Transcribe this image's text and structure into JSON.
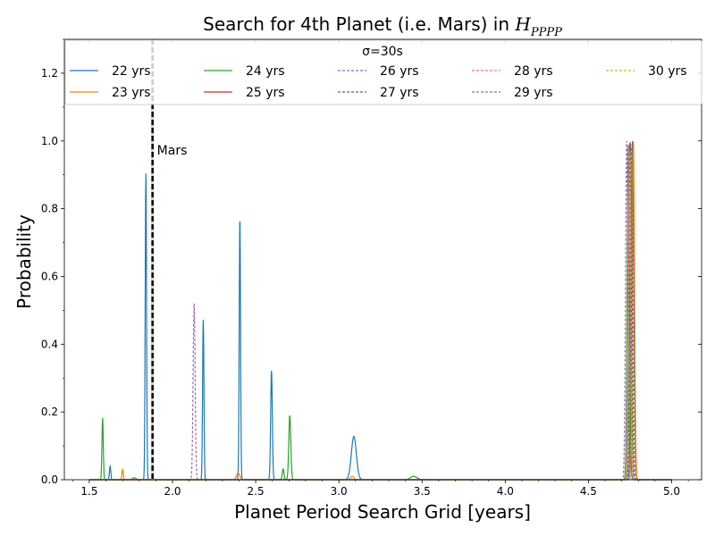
{
  "chart_data": {
    "type": "line",
    "title_main": "Search for 4th Planet (i.e. Mars) in ",
    "title_symbol": "H",
    "title_subscript": "PPPP",
    "xlabel": "Planet Period Search Grid [years]",
    "ylabel": "Probability",
    "xlim": [
      1.35,
      5.18
    ],
    "ylim": [
      0.0,
      1.3
    ],
    "x_ticks": [
      1.5,
      2.0,
      2.5,
      3.0,
      3.5,
      4.0,
      4.5,
      5.0
    ],
    "x_tick_labels": [
      "1.5",
      "2.0",
      "2.5",
      "3.0",
      "3.5",
      "4.0",
      "4.5",
      "5.0"
    ],
    "y_ticks": [
      0.0,
      0.2,
      0.4,
      0.6,
      0.8,
      1.0,
      1.2
    ],
    "y_tick_labels": [
      "0.0",
      "0.2",
      "0.4",
      "0.6",
      "0.8",
      "1.0",
      "1.2"
    ],
    "legend": {
      "title": "σ=30s",
      "placement": "top",
      "columns": 5
    },
    "reference_line": {
      "x": 1.88,
      "label": "Mars",
      "color": "#000000",
      "style": "dashed"
    },
    "x_range": [
      1.5,
      5.0
    ],
    "series": [
      {
        "name": "22 yrs",
        "color": "#1f77b4",
        "dash": "solid",
        "peaks": [
          [
            1.625,
            0.04,
            0.004
          ],
          [
            1.84,
            0.905,
            0.004
          ],
          [
            2.185,
            0.475,
            0.004
          ],
          [
            2.405,
            0.772,
            0.004
          ],
          [
            2.595,
            0.322,
            0.005
          ],
          [
            3.09,
            0.128,
            0.015
          ],
          [
            4.765,
            1.0,
            0.008
          ]
        ]
      },
      {
        "name": "23 yrs",
        "color": "#ff7f0e",
        "dash": "solid",
        "peaks": [
          [
            1.7,
            0.03,
            0.004
          ],
          [
            2.395,
            0.02,
            0.01
          ],
          [
            3.08,
            0.01,
            0.01
          ],
          [
            4.77,
            1.0,
            0.007
          ]
        ]
      },
      {
        "name": "24 yrs",
        "color": "#2ca02c",
        "dash": "solid",
        "peaks": [
          [
            1.58,
            0.182,
            0.004
          ],
          [
            1.77,
            0.006,
            0.01
          ],
          [
            2.665,
            0.032,
            0.005
          ],
          [
            2.705,
            0.19,
            0.006
          ],
          [
            3.45,
            0.01,
            0.02
          ],
          [
            4.74,
            0.99,
            0.007
          ]
        ]
      },
      {
        "name": "25 yrs",
        "color": "#d62728",
        "dash": "solid",
        "peaks": [
          [
            4.75,
            1.0,
            0.007
          ]
        ]
      },
      {
        "name": "26 yrs",
        "color": "#9467bd",
        "dash": "dashed",
        "peaks": [
          [
            2.13,
            0.52,
            0.006
          ],
          [
            4.73,
            1.0,
            0.007
          ]
        ]
      },
      {
        "name": "27 yrs",
        "color": "#8c564b",
        "dash": "dashed",
        "peaks": [
          [
            4.755,
            0.99,
            0.007
          ]
        ]
      },
      {
        "name": "28 yrs",
        "color": "#e377c2",
        "dash": "dashed",
        "peaks": [
          [
            4.745,
            0.98,
            0.007
          ]
        ]
      },
      {
        "name": "29 yrs",
        "color": "#7f7f7f",
        "dash": "dashed",
        "peaks": [
          [
            4.76,
            0.98,
            0.007
          ]
        ]
      },
      {
        "name": "30 yrs",
        "color": "#bcbd22",
        "dash": "dashed",
        "peaks": [
          [
            4.75,
            0.97,
            0.007
          ]
        ]
      }
    ]
  }
}
